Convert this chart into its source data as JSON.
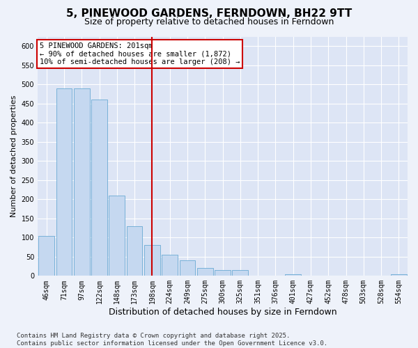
{
  "title": "5, PINEWOOD GARDENS, FERNDOWN, BH22 9TT",
  "subtitle": "Size of property relative to detached houses in Ferndown",
  "xlabel": "Distribution of detached houses by size in Ferndown",
  "ylabel": "Number of detached properties",
  "categories": [
    "46sqm",
    "71sqm",
    "97sqm",
    "122sqm",
    "148sqm",
    "173sqm",
    "198sqm",
    "224sqm",
    "249sqm",
    "275sqm",
    "300sqm",
    "325sqm",
    "351sqm",
    "376sqm",
    "401sqm",
    "427sqm",
    "452sqm",
    "478sqm",
    "503sqm",
    "528sqm",
    "554sqm"
  ],
  "values": [
    105,
    490,
    490,
    460,
    210,
    130,
    80,
    55,
    40,
    20,
    15,
    15,
    0,
    0,
    5,
    0,
    0,
    0,
    0,
    0,
    5
  ],
  "bar_color": "#c5d8f0",
  "bar_edge_color": "#6aaad4",
  "vline_x_index": 6,
  "vline_color": "#cc0000",
  "annotation_text": "5 PINEWOOD GARDENS: 201sqm\n← 90% of detached houses are smaller (1,872)\n10% of semi-detached houses are larger (208) →",
  "annotation_box_color": "#ffffff",
  "annotation_border_color": "#cc0000",
  "ylim": [
    0,
    625
  ],
  "yticks": [
    0,
    50,
    100,
    150,
    200,
    250,
    300,
    350,
    400,
    450,
    500,
    550,
    600
  ],
  "footer": "Contains HM Land Registry data © Crown copyright and database right 2025.\nContains public sector information licensed under the Open Government Licence v3.0.",
  "background_color": "#eef2fa",
  "plot_background_color": "#dde5f5",
  "grid_color": "#ffffff",
  "title_fontsize": 11,
  "subtitle_fontsize": 9,
  "xlabel_fontsize": 9,
  "ylabel_fontsize": 8,
  "tick_fontsize": 7,
  "annotation_fontsize": 7.5,
  "footer_fontsize": 6.5
}
